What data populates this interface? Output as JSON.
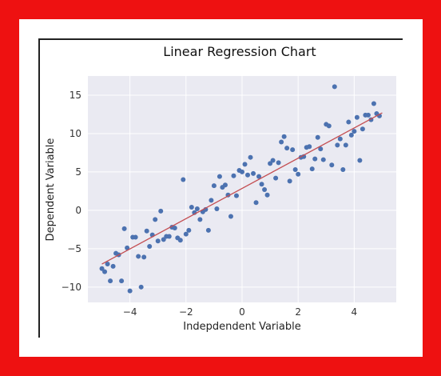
{
  "chart_data": {
    "type": "scatter",
    "title": "Linear Regression Chart",
    "xlabel": "Indepdendent Variable",
    "ylabel": "Dependent Variable",
    "xlim": [
      -5.5,
      5.5
    ],
    "ylim": [
      -12,
      17.5
    ],
    "xticks": [
      -4,
      -2,
      0,
      2,
      4
    ],
    "yticks": [
      -10,
      -5,
      0,
      5,
      10,
      15
    ],
    "grid": true,
    "colors": {
      "points": "#4c72b0",
      "line": "#c44e52",
      "plot_bg": "#eaeaf2",
      "grid": "#ffffff"
    },
    "regression_line": {
      "x": [
        -5.0,
        5.0
      ],
      "y": [
        -7.0,
        12.7
      ]
    },
    "x": [
      -5.0,
      -4.9,
      -4.8,
      -4.7,
      -4.6,
      -4.5,
      -4.4,
      -4.3,
      -4.2,
      -4.1,
      -4.0,
      -3.9,
      -3.8,
      -3.7,
      -3.6,
      -3.5,
      -3.4,
      -3.3,
      -3.2,
      -3.1,
      -3.0,
      -2.9,
      -2.8,
      -2.7,
      -2.6,
      -2.5,
      -2.4,
      -2.3,
      -2.2,
      -2.1,
      -2.0,
      -1.9,
      -1.8,
      -1.7,
      -1.6,
      -1.5,
      -1.4,
      -1.3,
      -1.2,
      -1.1,
      -1.0,
      -0.9,
      -0.8,
      -0.7,
      -0.6,
      -0.5,
      -0.4,
      -0.3,
      -0.2,
      -0.1,
      0.0,
      0.1,
      0.2,
      0.3,
      0.4,
      0.5,
      0.6,
      0.7,
      0.8,
      0.9,
      1.0,
      1.1,
      1.2,
      1.3,
      1.4,
      1.5,
      1.6,
      1.7,
      1.8,
      1.9,
      2.0,
      2.1,
      2.2,
      2.3,
      2.4,
      2.5,
      2.6,
      2.7,
      2.8,
      2.9,
      3.0,
      3.1,
      3.2,
      3.3,
      3.4,
      3.5,
      3.6,
      3.7,
      3.8,
      3.9,
      4.0,
      4.1,
      4.2,
      4.3,
      4.4,
      4.5,
      4.6,
      4.7,
      4.8,
      4.9
    ],
    "y": [
      -7.6,
      -8.0,
      -7.0,
      -9.2,
      -7.3,
      -5.6,
      -5.8,
      -9.2,
      -2.4,
      -4.9,
      -10.5,
      -3.5,
      -3.5,
      -6.0,
      -10.0,
      -6.1,
      -2.7,
      -4.7,
      -3.2,
      -1.2,
      -4.0,
      -0.1,
      -3.8,
      -3.4,
      -3.4,
      -2.2,
      -2.3,
      -3.6,
      -3.9,
      4.0,
      -3.1,
      -2.6,
      0.4,
      -0.3,
      0.2,
      -1.2,
      -0.2,
      0.1,
      -2.6,
      1.3,
      3.2,
      0.2,
      4.4,
      3.0,
      3.3,
      2.0,
      -0.8,
      4.5,
      1.9,
      5.2,
      5.0,
      6.0,
      4.6,
      6.9,
      4.8,
      1.0,
      4.4,
      3.4,
      2.7,
      2.0,
      6.1,
      6.5,
      4.2,
      6.2,
      8.9,
      9.6,
      8.1,
      3.8,
      7.9,
      5.3,
      4.7,
      6.9,
      7.0,
      8.2,
      8.3,
      5.4,
      6.7,
      9.5,
      8.0,
      6.6,
      11.2,
      11.0,
      5.9,
      16.1,
      8.5,
      9.3,
      5.3,
      8.5,
      11.5,
      9.8,
      10.3,
      12.1,
      6.5,
      10.6,
      12.4,
      12.4,
      11.8,
      13.9,
      12.6,
      12.3
    ]
  }
}
